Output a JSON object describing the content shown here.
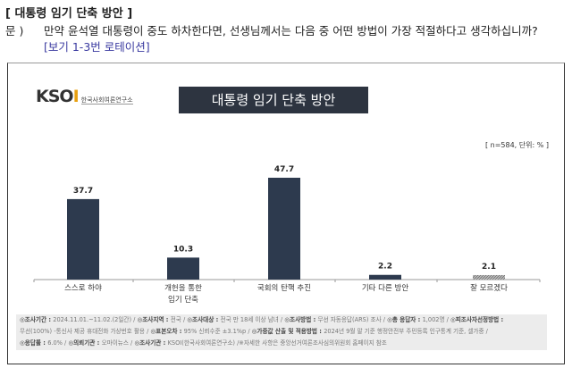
{
  "header": {
    "title": "[ 대통령 임기 단축 방안 ]",
    "q_label": "문 )",
    "question": "만약 윤석열 대통령이 중도 하차한다면, 선생님께서는 다음 중 어떤 방법이 가장 적절하다고 생각하십니까?",
    "rotation": "[보기 1-3번 로테이션]"
  },
  "logo": {
    "name": "KSOI",
    "sub": "한국사회여론연구소"
  },
  "chart_data": {
    "type": "bar",
    "title": "대통령 임기 단축 방안",
    "note": "[ n=584, 단위: % ]",
    "categories": [
      "스스로 하야",
      "개헌을 통한\n임기 단축",
      "국회의 탄핵 추진",
      "기타 다른 방안",
      "잘 모르겠다"
    ],
    "values": [
      37.7,
      10.3,
      47.7,
      2.2,
      2.1
    ],
    "colors": [
      "#2d3a4e",
      "#2d3a4e",
      "#2d3a4e",
      "#2d3a4e",
      "#999999"
    ]
  },
  "footer": [
    [
      [
        "◎조사기간 : ",
        "2024.11.01.~11.02.(2일간) / "
      ],
      [
        "◎조사지역 : ",
        "전국 / "
      ],
      [
        "◎조사대상 : ",
        "전국 만 18세 이상 남녀 / "
      ],
      [
        "◎조사방법 : ",
        "무선 자동응답(ARS) 조사 / "
      ],
      [
        "◎총 응답자 : ",
        "1,002명 / "
      ],
      [
        "◎피조사자선정방법 :",
        ""
      ]
    ],
    [
      [
        "",
        "무선(100%) -통신사 제공 휴대전화 가상번호 활용 / "
      ],
      [
        "◎표본오차 : ",
        "95% 신뢰수준 ±3.1%p / "
      ],
      [
        "◎가중값 산출 및 적용방법 : ",
        "2024년 9월 말 기준 행정안전부 주민등록 인구통계 기준, 셀가중 /"
      ]
    ],
    [
      [
        "◎응답률 : ",
        "6.0% / "
      ],
      [
        "◎의뢰기관 : ",
        "오마이뉴스 / "
      ],
      [
        "◎조사기관 : ",
        "KSOI(한국사회여론연구소) /※자세한 사항은 중앙선거여론조사심의위원회 홈페이지 참조"
      ]
    ]
  ]
}
